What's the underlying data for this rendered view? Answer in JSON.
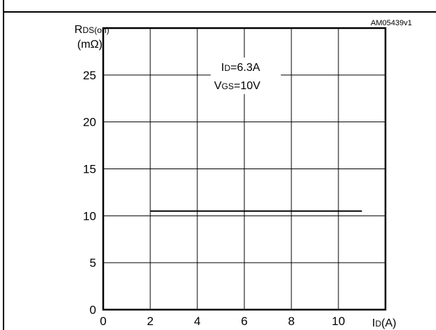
{
  "chart_data": {
    "type": "line",
    "figure_code": "AM05439v1",
    "conditions": {
      "id_value": "=6.3A",
      "vgs_value": "=10V"
    },
    "ylabel": {
      "main": "R",
      "sub": "DS(on)",
      "unit": "(mΩ)"
    },
    "xlabel": {
      "main": "I",
      "sub": "D",
      "unit": "(A)"
    },
    "x_ticks": [
      0,
      2,
      4,
      6,
      8,
      10
    ],
    "y_ticks": [
      0,
      5,
      10,
      15,
      20,
      25
    ],
    "xlim": [
      0,
      12
    ],
    "ylim": [
      0,
      30
    ],
    "grid": true,
    "series": [
      {
        "x": [
          2,
          11
        ],
        "y": [
          10.5,
          10.5
        ]
      }
    ]
  }
}
